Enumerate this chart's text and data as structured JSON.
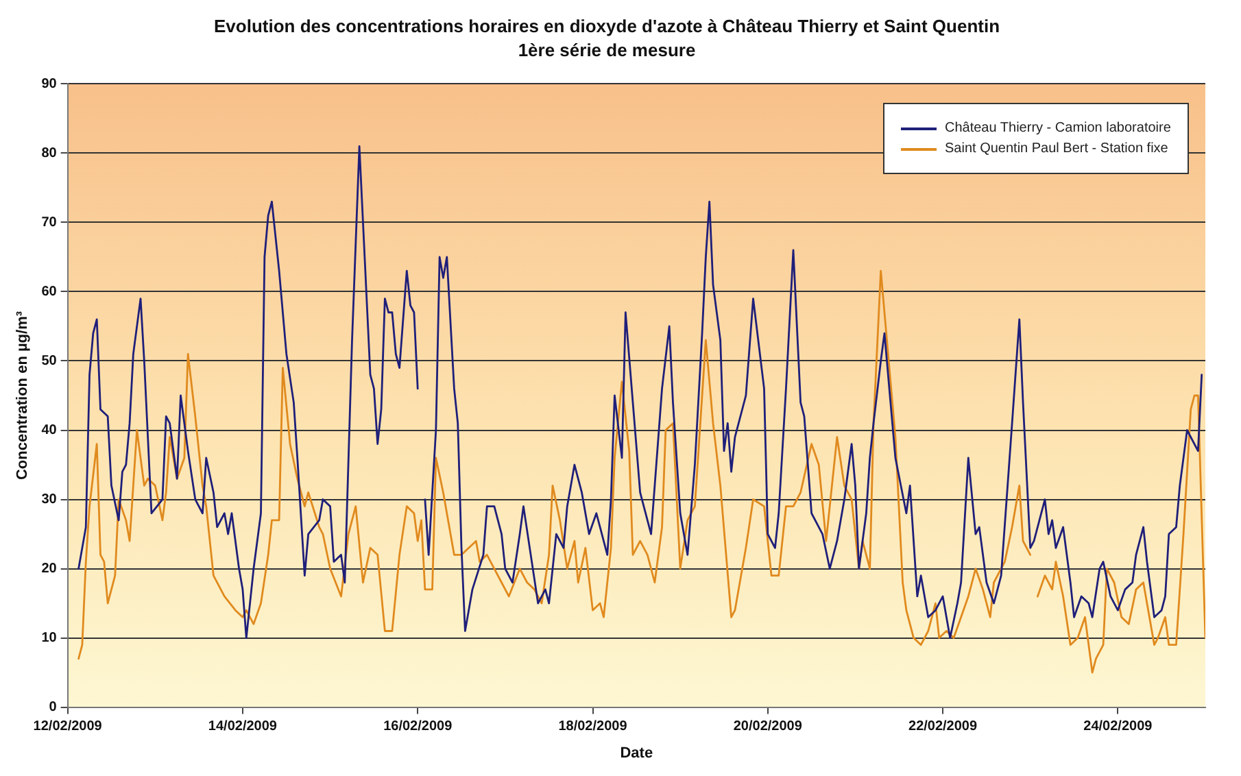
{
  "chart_data": {
    "type": "line",
    "title": "Evolution des concentrations horaires en dioxyde d'azote à Château Thierry et Saint Quentin",
    "subtitle": "1ère série de mesure",
    "xlabel": "Date",
    "ylabel": "Concentration en µg/m³",
    "xlim": [
      "2009-02-12",
      "2009-02-25"
    ],
    "xticks": [
      {
        "value": "2009-02-12",
        "label": "12/02/2009"
      },
      {
        "value": "2009-02-14",
        "label": "14/02/2009"
      },
      {
        "value": "2009-02-16",
        "label": "16/02/2009"
      },
      {
        "value": "2009-02-18",
        "label": "18/02/2009"
      },
      {
        "value": "2009-02-20",
        "label": "20/02/2009"
      },
      {
        "value": "2009-02-22",
        "label": "22/02/2009"
      },
      {
        "value": "2009-02-24",
        "label": "24/02/2009"
      }
    ],
    "ylim": [
      0,
      90
    ],
    "yticks": [
      0,
      10,
      20,
      30,
      40,
      50,
      60,
      70,
      80,
      90
    ],
    "grid": "y",
    "legend": "top right",
    "marker": "none",
    "line_style": "solid",
    "series": [
      {
        "name": "Château Thierry - Camion laboratoire",
        "color": "#1f1f7a",
        "x": [
          "2009-02-12T03:00",
          "2009-02-12T05:00",
          "2009-02-12T06:00",
          "2009-02-12T07:00",
          "2009-02-12T08:00",
          "2009-02-12T09:00",
          "2009-02-12T11:00",
          "2009-02-12T12:00",
          "2009-02-12T14:00",
          "2009-02-12T15:00",
          "2009-02-12T16:00",
          "2009-02-12T17:00",
          "2009-02-12T18:00",
          "2009-02-12T20:00",
          "2009-02-12T21:00",
          "2009-02-12T23:00",
          "2009-02-13T02:00",
          "2009-02-13T03:00",
          "2009-02-13T04:00",
          "2009-02-13T06:00",
          "2009-02-13T07:00",
          "2009-02-13T08:00",
          "2009-02-13T09:00",
          "2009-02-13T11:00",
          "2009-02-13T13:00",
          "2009-02-13T14:00",
          "2009-02-13T16:00",
          "2009-02-13T17:00",
          "2009-02-13T19:00",
          "2009-02-13T20:00",
          "2009-02-13T21:00",
          "2009-02-13T23:00",
          "2009-02-14T00:00",
          "2009-02-14T01:00",
          "2009-02-14T03:00",
          "2009-02-14T05:00",
          "2009-02-14T06:00",
          "2009-02-14T07:00",
          "2009-02-14T08:00",
          "2009-02-14T10:00",
          "2009-02-14T12:00",
          "2009-02-14T14:00",
          "2009-02-14T15:00",
          "2009-02-14T17:00",
          "2009-02-14T18:00",
          "2009-02-14T21:00",
          "2009-02-14T22:00",
          "2009-02-15T00:00",
          "2009-02-15T01:00",
          "2009-02-15T03:00",
          "2009-02-15T04:00",
          "2009-02-15T06:00",
          "2009-02-15T08:00",
          "2009-02-15T09:00",
          "2009-02-15T11:00",
          "2009-02-15T12:00",
          "2009-02-15T13:00",
          "2009-02-15T14:00",
          "2009-02-15T15:00",
          "2009-02-15T16:00",
          "2009-02-15T17:00",
          "2009-02-15T18:00",
          "2009-02-15T19:00",
          "2009-02-15T21:00",
          "2009-02-15T22:00",
          "2009-02-15T23:00",
          "2009-02-16T00:00",
          "2009-02-16T01:00",
          "2009-02-16T02:00",
          "2009-02-16T03:00",
          "2009-02-16T05:00",
          "2009-02-16T06:00",
          "2009-02-16T07:00",
          "2009-02-16T08:00",
          "2009-02-16T10:00",
          "2009-02-16T11:00",
          "2009-02-16T12:00",
          "2009-02-16T13:00",
          "2009-02-16T15:00",
          "2009-02-16T18:00",
          "2009-02-16T19:00",
          "2009-02-16T21:00",
          "2009-02-16T22:00",
          "2009-02-16T23:00",
          "2009-02-17T00:00",
          "2009-02-17T02:00",
          "2009-02-17T04:00",
          "2009-02-17T05:00",
          "2009-02-17T07:00",
          "2009-02-17T09:00",
          "2009-02-17T11:00",
          "2009-02-17T12:00",
          "2009-02-17T14:00",
          "2009-02-17T16:00",
          "2009-02-17T17:00",
          "2009-02-17T19:00",
          "2009-02-17T21:00",
          "2009-02-17T23:00",
          "2009-02-18T01:00",
          "2009-02-18T02:00",
          "2009-02-18T04:00",
          "2009-02-18T05:00",
          "2009-02-18T06:00",
          "2009-02-18T08:00",
          "2009-02-18T09:00",
          "2009-02-18T11:00",
          "2009-02-18T13:00",
          "2009-02-18T16:00",
          "2009-02-18T17:00",
          "2009-02-18T19:00",
          "2009-02-18T21:00",
          "2009-02-18T22:00",
          "2009-02-19T00:00",
          "2009-02-19T02:00",
          "2009-02-19T04:00",
          "2009-02-19T06:00",
          "2009-02-19T07:00",
          "2009-02-19T08:00",
          "2009-02-19T09:00",
          "2009-02-19T11:00",
          "2009-02-19T12:00",
          "2009-02-19T13:00",
          "2009-02-19T14:00",
          "2009-02-19T15:00",
          "2009-02-19T18:00",
          "2009-02-19T20:00",
          "2009-02-19T23:00",
          "2009-02-20T00:00",
          "2009-02-20T02:00",
          "2009-02-20T03:00",
          "2009-02-20T05:00",
          "2009-02-20T07:00",
          "2009-02-20T09:00",
          "2009-02-20T10:00",
          "2009-02-20T12:00",
          "2009-02-20T15:00",
          "2009-02-20T17:00",
          "2009-02-20T19:00",
          "2009-02-20T21:00",
          "2009-02-20T23:00",
          "2009-02-21T00:00",
          "2009-02-21T01:00",
          "2009-02-21T03:00",
          "2009-02-21T04:00",
          "2009-02-21T05:00",
          "2009-02-21T07:00",
          "2009-02-21T08:00",
          "2009-02-21T10:00",
          "2009-02-21T11:00",
          "2009-02-21T14:00",
          "2009-02-21T15:00",
          "2009-02-21T17:00",
          "2009-02-21T18:00",
          "2009-02-21T20:00",
          "2009-02-21T22:00",
          "2009-02-22T00:00",
          "2009-02-22T02:00",
          "2009-02-22T04:00",
          "2009-02-22T05:00",
          "2009-02-22T07:00",
          "2009-02-22T09:00",
          "2009-02-22T10:00",
          "2009-02-22T12:00",
          "2009-02-22T14:00",
          "2009-02-22T16:00",
          "2009-02-22T19:00",
          "2009-02-22T21:00",
          "2009-02-22T22:00",
          "2009-02-23T00:00",
          "2009-02-23T01:00",
          "2009-02-23T04:00",
          "2009-02-23T05:00",
          "2009-02-23T06:00",
          "2009-02-23T07:00",
          "2009-02-23T09:00",
          "2009-02-23T11:00",
          "2009-02-23T12:00",
          "2009-02-23T14:00",
          "2009-02-23T16:00",
          "2009-02-23T17:00",
          "2009-02-23T19:00",
          "2009-02-23T20:00",
          "2009-02-23T22:00",
          "2009-02-24T00:00",
          "2009-02-24T02:00",
          "2009-02-24T04:00",
          "2009-02-24T05:00",
          "2009-02-24T07:00",
          "2009-02-24T08:00",
          "2009-02-24T10:00",
          "2009-02-24T12:00",
          "2009-02-24T13:00",
          "2009-02-24T14:00",
          "2009-02-24T16:00",
          "2009-02-24T17:00",
          "2009-02-24T19:00",
          "2009-02-24T22:00",
          "2009-02-24T23:00"
        ],
        "values": [
          20,
          26,
          48,
          54,
          56,
          43,
          42,
          32,
          27,
          34,
          35,
          41,
          51,
          59,
          50,
          28,
          30,
          42,
          41,
          33,
          45,
          41,
          37,
          30,
          28,
          36,
          31,
          26,
          28,
          25,
          28,
          20,
          17,
          10,
          20,
          28,
          65,
          71,
          73,
          63,
          51,
          44,
          36,
          19,
          25,
          27,
          30,
          29,
          21,
          22,
          18,
          53,
          81,
          70,
          48,
          46,
          38,
          43,
          59,
          57,
          57,
          51,
          49,
          63,
          58,
          57,
          46,
          null,
          30,
          22,
          40,
          65,
          62,
          65,
          46,
          41,
          23,
          11,
          17,
          22,
          29,
          29,
          27,
          25,
          20,
          18,
          25,
          29,
          22,
          15,
          17,
          15,
          25,
          23,
          29,
          35,
          31,
          25,
          28,
          26,
          22,
          30,
          45,
          36,
          57,
          44,
          31,
          25,
          32,
          46,
          55,
          44,
          28,
          22,
          35,
          54,
          65,
          73,
          61,
          53,
          37,
          41,
          34,
          39,
          45,
          59,
          46,
          25,
          23,
          28,
          46,
          66,
          44,
          42,
          28,
          25,
          20,
          24,
          30,
          38,
          32,
          20,
          28,
          36,
          41,
          50,
          54,
          42,
          36,
          28,
          32,
          16,
          19,
          13,
          14,
          16,
          10,
          15,
          18,
          36,
          25,
          26,
          18,
          15,
          19,
          41,
          56,
          44,
          23,
          24,
          30,
          25,
          27,
          23,
          26,
          18,
          13,
          16,
          15,
          13,
          20,
          21,
          16,
          14,
          17,
          18,
          22,
          26,
          21,
          13,
          14,
          16,
          25,
          26,
          32,
          40,
          37,
          48
        ]
      },
      {
        "name": "Saint Quentin Paul Bert - Station fixe",
        "color": "#e08a1e",
        "x": [
          "2009-02-12T03:00",
          "2009-02-12T04:00",
          "2009-02-12T05:00",
          "2009-02-12T06:00",
          "2009-02-12T08:00",
          "2009-02-12T09:00",
          "2009-02-12T10:00",
          "2009-02-12T11:00",
          "2009-02-12T13:00",
          "2009-02-12T14:00",
          "2009-02-12T16:00",
          "2009-02-12T17:00",
          "2009-02-12T19:00",
          "2009-02-12T21:00",
          "2009-02-12T22:00",
          "2009-02-13T00:00",
          "2009-02-13T02:00",
          "2009-02-13T03:00",
          "2009-02-13T04:00",
          "2009-02-13T06:00",
          "2009-02-13T08:00",
          "2009-02-13T09:00",
          "2009-02-13T11:00",
          "2009-02-13T13:00",
          "2009-02-13T14:00",
          "2009-02-13T16:00",
          "2009-02-13T19:00",
          "2009-02-13T22:00",
          "2009-02-14T00:00",
          "2009-02-14T01:00",
          "2009-02-14T03:00",
          "2009-02-14T05:00",
          "2009-02-14T07:00",
          "2009-02-14T08:00",
          "2009-02-14T10:00",
          "2009-02-14T11:00",
          "2009-02-14T13:00",
          "2009-02-14T15:00",
          "2009-02-14T17:00",
          "2009-02-14T18:00",
          "2009-02-14T21:00",
          "2009-02-14T22:00",
          "2009-02-15T00:00",
          "2009-02-15T03:00",
          "2009-02-15T05:00",
          "2009-02-15T07:00",
          "2009-02-15T09:00",
          "2009-02-15T11:00",
          "2009-02-15T13:00",
          "2009-02-15T15:00",
          "2009-02-15T17:00",
          "2009-02-15T19:00",
          "2009-02-15T21:00",
          "2009-02-15T23:00",
          "2009-02-16T00:00",
          "2009-02-16T01:00",
          "2009-02-16T02:00",
          "2009-02-16T04:00",
          "2009-02-16T05:00",
          "2009-02-16T07:00",
          "2009-02-16T10:00",
          "2009-02-16T12:00",
          "2009-02-16T14:00",
          "2009-02-16T16:00",
          "2009-02-16T17:00",
          "2009-02-16T19:00",
          "2009-02-16T21:00",
          "2009-02-16T23:00",
          "2009-02-17T01:00",
          "2009-02-17T04:00",
          "2009-02-17T06:00",
          "2009-02-17T08:00",
          "2009-02-17T10:00",
          "2009-02-17T12:00",
          "2009-02-17T13:00",
          "2009-02-17T15:00",
          "2009-02-17T17:00",
          "2009-02-17T19:00",
          "2009-02-17T20:00",
          "2009-02-17T22:00",
          "2009-02-18T00:00",
          "2009-02-18T02:00",
          "2009-02-18T03:00",
          "2009-02-18T05:00",
          "2009-02-18T06:00",
          "2009-02-18T08:00",
          "2009-02-18T10:00",
          "2009-02-18T11:00",
          "2009-02-18T13:00",
          "2009-02-18T15:00",
          "2009-02-18T17:00",
          "2009-02-18T19:00",
          "2009-02-18T20:00",
          "2009-02-18T22:00",
          "2009-02-19T00:00",
          "2009-02-19T02:00",
          "2009-02-19T04:00",
          "2009-02-19T07:00",
          "2009-02-19T09:00",
          "2009-02-19T11:00",
          "2009-02-19T14:00",
          "2009-02-19T15:00",
          "2009-02-19T18:00",
          "2009-02-19T20:00",
          "2009-02-19T23:00",
          "2009-02-20T01:00",
          "2009-02-20T03:00",
          "2009-02-20T05:00",
          "2009-02-20T07:00",
          "2009-02-20T09:00",
          "2009-02-20T12:00",
          "2009-02-20T14:00",
          "2009-02-20T16:00",
          "2009-02-20T19:00",
          "2009-02-20T21:00",
          "2009-02-20T23:00",
          "2009-02-21T01:00",
          "2009-02-21T02:00",
          "2009-02-21T04:00",
          "2009-02-21T05:00",
          "2009-02-21T07:00",
          "2009-02-21T09:00",
          "2009-02-21T11:00",
          "2009-02-21T13:00",
          "2009-02-21T14:00",
          "2009-02-21T16:00",
          "2009-02-21T18:00",
          "2009-02-21T20:00",
          "2009-02-21T22:00",
          "2009-02-21T23:00",
          "2009-02-22T01:00",
          "2009-02-22T03:00",
          "2009-02-22T05:00",
          "2009-02-22T07:00",
          "2009-02-22T09:00",
          "2009-02-22T11:00",
          "2009-02-22T13:00",
          "2009-02-22T14:00",
          "2009-02-22T17:00",
          "2009-02-22T19:00",
          "2009-02-22T21:00",
          "2009-02-22T22:00",
          "2009-02-23T00:00",
          "2009-02-23T01:00",
          "2009-02-23T02:00",
          "2009-02-23T04:00",
          "2009-02-23T06:00",
          "2009-02-23T07:00",
          "2009-02-23T09:00",
          "2009-02-23T11:00",
          "2009-02-23T13:00",
          "2009-02-23T15:00",
          "2009-02-23T17:00",
          "2009-02-23T18:00",
          "2009-02-23T20:00",
          "2009-02-23T21:00",
          "2009-02-23T23:00",
          "2009-02-24T01:00",
          "2009-02-24T03:00",
          "2009-02-24T05:00",
          "2009-02-24T07:00",
          "2009-02-24T10:00",
          "2009-02-24T11:00",
          "2009-02-24T13:00",
          "2009-02-24T14:00",
          "2009-02-24T16:00",
          "2009-02-24T18:00",
          "2009-02-24T20:00",
          "2009-02-24T21:00",
          "2009-02-24T22:00",
          "2009-02-25T00:00"
        ],
        "values": [
          7,
          9,
          21,
          29,
          38,
          22,
          21,
          15,
          19,
          30,
          27,
          24,
          40,
          32,
          33,
          32,
          27,
          31,
          39,
          33,
          36,
          51,
          42,
          32,
          29,
          19,
          16,
          14,
          13,
          14,
          12,
          15,
          22,
          27,
          27,
          49,
          38,
          33,
          29,
          31,
          26,
          25,
          20,
          16,
          25,
          29,
          18,
          23,
          22,
          11,
          11,
          22,
          29,
          28,
          24,
          27,
          17,
          17,
          36,
          31,
          22,
          22,
          23,
          24,
          21,
          22,
          20,
          18,
          16,
          20,
          18,
          17,
          15,
          22,
          32,
          27,
          20,
          24,
          18,
          23,
          14,
          15,
          13,
          23,
          36,
          47,
          37,
          22,
          24,
          22,
          18,
          26,
          40,
          41,
          20,
          27,
          29,
          53,
          41,
          32,
          13,
          14,
          23,
          30,
          29,
          19,
          19,
          29,
          29,
          31,
          38,
          35,
          24,
          39,
          32,
          30,
          20,
          24,
          20,
          41,
          63,
          51,
          39,
          18,
          14,
          10,
          9,
          11,
          15,
          10,
          11,
          10,
          13,
          16,
          20,
          17,
          13,
          18,
          21,
          26,
          32,
          24,
          22,
          null,
          16,
          19,
          17,
          21,
          16,
          9,
          10,
          13,
          5,
          7,
          9,
          20,
          18,
          13,
          12,
          17,
          18,
          9,
          10,
          13,
          9,
          9,
          25,
          43,
          45,
          45,
          10
        ]
      }
    ]
  }
}
